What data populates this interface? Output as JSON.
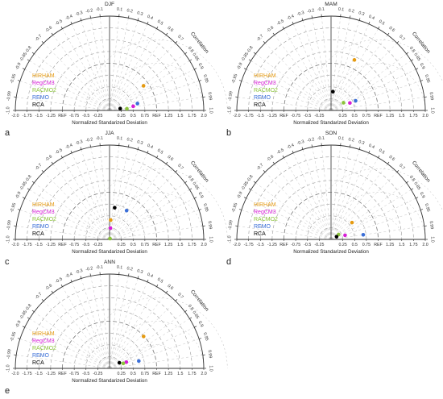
{
  "figure": {
    "legend": [
      "HIRHAM",
      "RegCM3",
      "RACMO2",
      "REMO",
      "RCA"
    ],
    "model_colors": {
      "HIRHAM": "#e59a10",
      "RegCM3": "#d61ed6",
      "RACMO2": "#8cc43c",
      "REMO": "#3b6fd8",
      "RCA": "#000000"
    },
    "corr_ticks": [
      "0.1",
      "0.2",
      "0.3",
      "0.4",
      "0.5",
      "0.6",
      "0.7",
      "0.8",
      "0.85",
      "0.9",
      "0.95",
      "0.99",
      "1.0"
    ],
    "corr_ticks_neg": [
      "-0.1",
      "-0.2",
      "-0.3",
      "-0.4",
      "-0.5",
      "-0.6",
      "-0.7",
      "-0.8",
      "-0.85",
      "-0.9",
      "-0.95",
      "-0.99",
      "-1.0"
    ],
    "std_ticks": [
      "-2.0",
      "-1.75",
      "-1.5",
      "-1.25",
      "REF",
      "-0.75",
      "-0.5",
      "-0.25",
      "0.25",
      "0.5",
      "0.75",
      "REF",
      "1.25",
      "1.5",
      "1.75",
      "2.0"
    ],
    "xlabel": "Normalized Standarized Deviation",
    "corr_label": "Correlation"
  },
  "chart_data": [
    {
      "type": "scatter",
      "subtype": "taylor-diagram",
      "panel_letter": "a",
      "title": "DJF",
      "xlabel": "Normalized Standarized Deviation",
      "radial_label": "Correlation",
      "std_range": [
        0,
        2.0
      ],
      "corr_range": [
        -1.0,
        1.0
      ],
      "grid": true,
      "legend": "left",
      "series": [
        {
          "name": "HIRHAM",
          "std": 0.89,
          "corr": 0.81
        },
        {
          "name": "RegCM3",
          "std": 0.51,
          "corr": 0.985
        },
        {
          "name": "RACMO2",
          "std": 0.37,
          "corr": 0.995
        },
        {
          "name": "REMO",
          "std": 0.61,
          "corr": 0.971
        },
        {
          "name": "RCA",
          "std": 0.23,
          "corr": 0.985
        }
      ]
    },
    {
      "type": "scatter",
      "subtype": "taylor-diagram",
      "panel_letter": "b",
      "title": "MAM",
      "xlabel": "Normalized Standarized Deviation",
      "radial_label": "Correlation",
      "std_range": [
        0,
        2.0
      ],
      "corr_range": [
        -1.0,
        1.0
      ],
      "grid": true,
      "legend": "left",
      "series": [
        {
          "name": "HIRHAM",
          "std": 1.18,
          "corr": 0.42
        },
        {
          "name": "RegCM3",
          "std": 0.43,
          "corr": 0.93
        },
        {
          "name": "RACMO2",
          "std": 0.31,
          "corr": 0.85
        },
        {
          "name": "REMO",
          "std": 0.56,
          "corr": 0.931
        },
        {
          "name": "RCA",
          "std": 0.4,
          "corr": 0.1
        }
      ]
    },
    {
      "type": "scatter",
      "subtype": "taylor-diagram",
      "panel_letter": "c",
      "title": "JJA",
      "xlabel": "Normalized Standarized Deviation",
      "radial_label": "Correlation",
      "std_range": [
        0,
        2.0
      ],
      "corr_range": [
        -1.0,
        1.0
      ],
      "grid": true,
      "legend": "left",
      "series": [
        {
          "name": "HIRHAM",
          "std": 0.41,
          "corr": 0.06
        },
        {
          "name": "RegCM3",
          "std": 0.24,
          "corr": 0.08
        },
        {
          "name": "RACMO2",
          "std": 0.02,
          "corr": 0.5
        },
        {
          "name": "REMO",
          "std": 0.71,
          "corr": 0.51
        },
        {
          "name": "RCA",
          "std": 0.68,
          "corr": 0.16
        }
      ]
    },
    {
      "type": "scatter",
      "subtype": "taylor-diagram",
      "panel_letter": "d",
      "title": "SON",
      "xlabel": "Normalized Standarized Deviation",
      "radial_label": "Correlation",
      "std_range": [
        0,
        2.0
      ],
      "corr_range": [
        -1.0,
        1.0
      ],
      "grid": true,
      "legend": "left",
      "series": [
        {
          "name": "HIRHAM",
          "std": 0.57,
          "corr": 0.78
        },
        {
          "name": "RegCM3",
          "std": 0.31,
          "corr": 0.96
        },
        {
          "name": "RACMO2",
          "std": 0.19,
          "corr": 0.84
        },
        {
          "name": "REMO",
          "std": 0.69,
          "corr": 0.99
        },
        {
          "name": "RCA",
          "std": 0.13,
          "corr": 0.9
        }
      ]
    },
    {
      "type": "scatter",
      "subtype": "taylor-diagram",
      "panel_letter": "e",
      "title": "ANN",
      "xlabel": "Normalized Standarized Deviation",
      "radial_label": "Correlation",
      "std_range": [
        0,
        2.0
      ],
      "corr_range": [
        -1.0,
        1.0
      ],
      "grid": true,
      "legend": "left",
      "series": [
        {
          "name": "HIRHAM",
          "std": 0.99,
          "corr": 0.73
        },
        {
          "name": "RegCM3",
          "std": 0.38,
          "corr": 0.938
        },
        {
          "name": "RACMO2",
          "std": 0.31,
          "corr": 0.94
        },
        {
          "name": "REMO",
          "std": 0.64,
          "corr": 0.97
        },
        {
          "name": "RCA",
          "std": 0.24,
          "corr": 0.868
        }
      ]
    }
  ]
}
